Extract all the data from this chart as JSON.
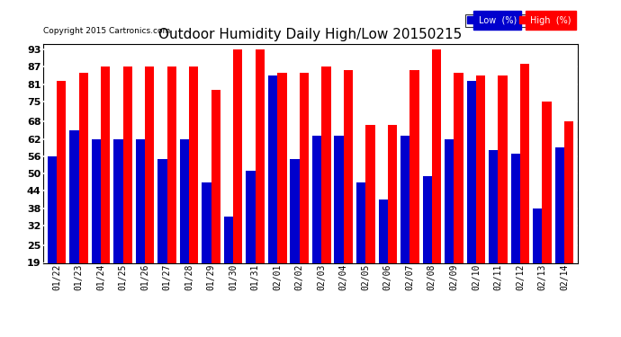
{
  "title": "Outdoor Humidity Daily High/Low 20150215",
  "copyright": "Copyright 2015 Cartronics.com",
  "dates": [
    "01/22",
    "01/23",
    "01/24",
    "01/25",
    "01/26",
    "01/27",
    "01/28",
    "01/29",
    "01/30",
    "01/31",
    "02/01",
    "02/02",
    "02/03",
    "02/04",
    "02/05",
    "02/06",
    "02/07",
    "02/08",
    "02/09",
    "02/10",
    "02/11",
    "02/12",
    "02/13",
    "02/14"
  ],
  "high": [
    82,
    85,
    87,
    87,
    87,
    87,
    87,
    79,
    93,
    93,
    85,
    85,
    87,
    86,
    67,
    67,
    86,
    93,
    85,
    84,
    84,
    88,
    75,
    68
  ],
  "low": [
    56,
    65,
    62,
    62,
    62,
    55,
    62,
    47,
    35,
    51,
    84,
    55,
    63,
    63,
    47,
    41,
    63,
    49,
    62,
    82,
    58,
    57,
    38,
    59
  ],
  "high_color": "#ff0000",
  "low_color": "#0000cd",
  "bg_color": "#ffffff",
  "yticks": [
    19,
    25,
    32,
    38,
    44,
    50,
    56,
    62,
    68,
    75,
    81,
    87,
    93
  ],
  "ymin": 19,
  "ymax": 95,
  "title_fontsize": 11,
  "legend_labels": [
    "Low  (%)",
    "High  (%)"
  ]
}
